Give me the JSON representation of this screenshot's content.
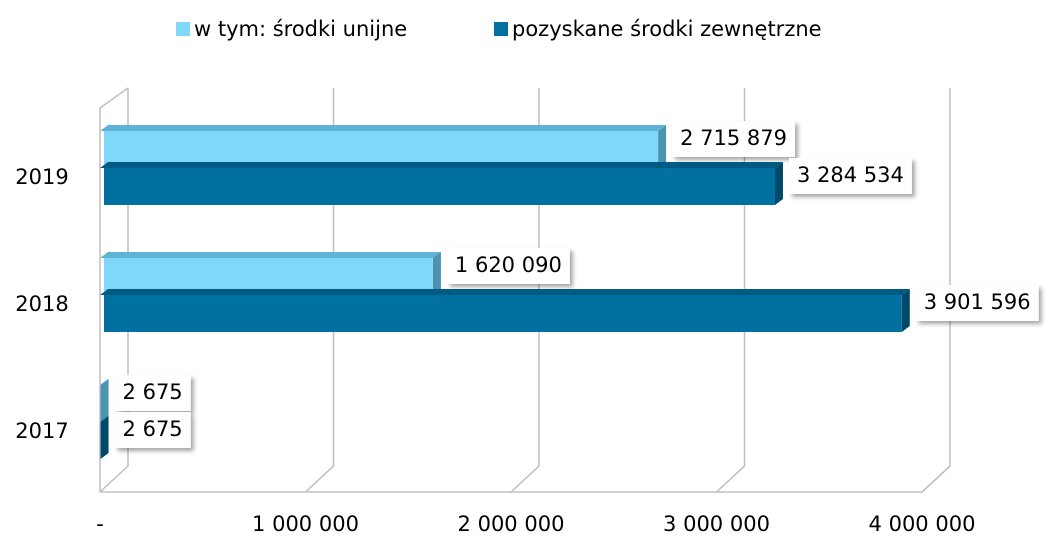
{
  "chart_data": {
    "type": "bar",
    "orientation": "horizontal",
    "categories": [
      "2017",
      "2018",
      "2019"
    ],
    "series": [
      {
        "name": "w tym: środki unijne",
        "color": "#7fd8f8",
        "values": [
          2675,
          1620090,
          2715879
        ],
        "value_labels": [
          "2 675",
          "1 620 090",
          "2 715 879"
        ]
      },
      {
        "name": "pozyskane środki zewnętrzne",
        "color": "#0070a0",
        "values": [
          2675,
          3901596,
          3284534
        ],
        "value_labels": [
          "2 675",
          "3 901 596",
          "3 284 534"
        ]
      }
    ],
    "xlim": [
      0,
      4000000
    ],
    "xticks": [
      {
        "value": 0,
        "label": "-"
      },
      {
        "value": 1000000,
        "label": "1 000 000"
      },
      {
        "value": 2000000,
        "label": "2 000 000"
      },
      {
        "value": 3000000,
        "label": "3 000 000"
      },
      {
        "value": 4000000,
        "label": "4 000 000"
      }
    ],
    "grid": true,
    "legend": "top"
  }
}
